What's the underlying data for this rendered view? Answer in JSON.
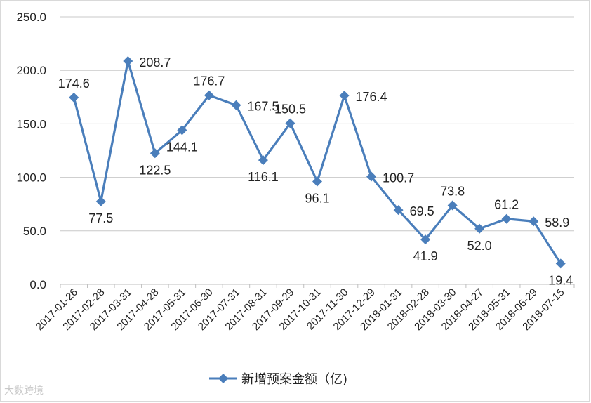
{
  "chart_data": {
    "type": "line",
    "categories": [
      "2017-01-26",
      "2017-02-28",
      "2017-03-31",
      "2017-04-28",
      "2017-05-31",
      "2017-06-30",
      "2017-07-31",
      "2017-08-31",
      "2017-09-29",
      "2017-10-31",
      "2017-11-30",
      "2017-12-29",
      "2018-01-31",
      "2018-02-28",
      "2018-03-30",
      "2018-04-27",
      "2018-05-31",
      "2018-06-29",
      "2018-07-15"
    ],
    "series": [
      {
        "name": "新增预案金额（亿)",
        "values": [
          174.6,
          77.5,
          208.7,
          122.5,
          144.1,
          176.7,
          167.5,
          116.1,
          150.5,
          96.1,
          176.4,
          100.7,
          69.5,
          41.9,
          73.8,
          52.0,
          61.2,
          58.9,
          19.4
        ]
      }
    ],
    "data_labels": [
      "174.6",
      "77.5",
      "208.7",
      "122.5",
      "144.1",
      "176.7",
      "167.5",
      "116.1",
      "150.5",
      "96.1",
      "176.4",
      "100.7",
      "69.5",
      "41.9",
      "73.8",
      "52.0",
      "61.2",
      "58.9",
      "19.4"
    ],
    "yticks": [
      "0.0",
      "50.0",
      "100.0",
      "150.0",
      "200.0",
      "250.0"
    ],
    "ylim": [
      0,
      250
    ],
    "grid": true,
    "legend": "bottom",
    "color": "#4a7ebb"
  },
  "legend_label": "新增预案金额（亿)",
  "watermark": "大数跨境"
}
